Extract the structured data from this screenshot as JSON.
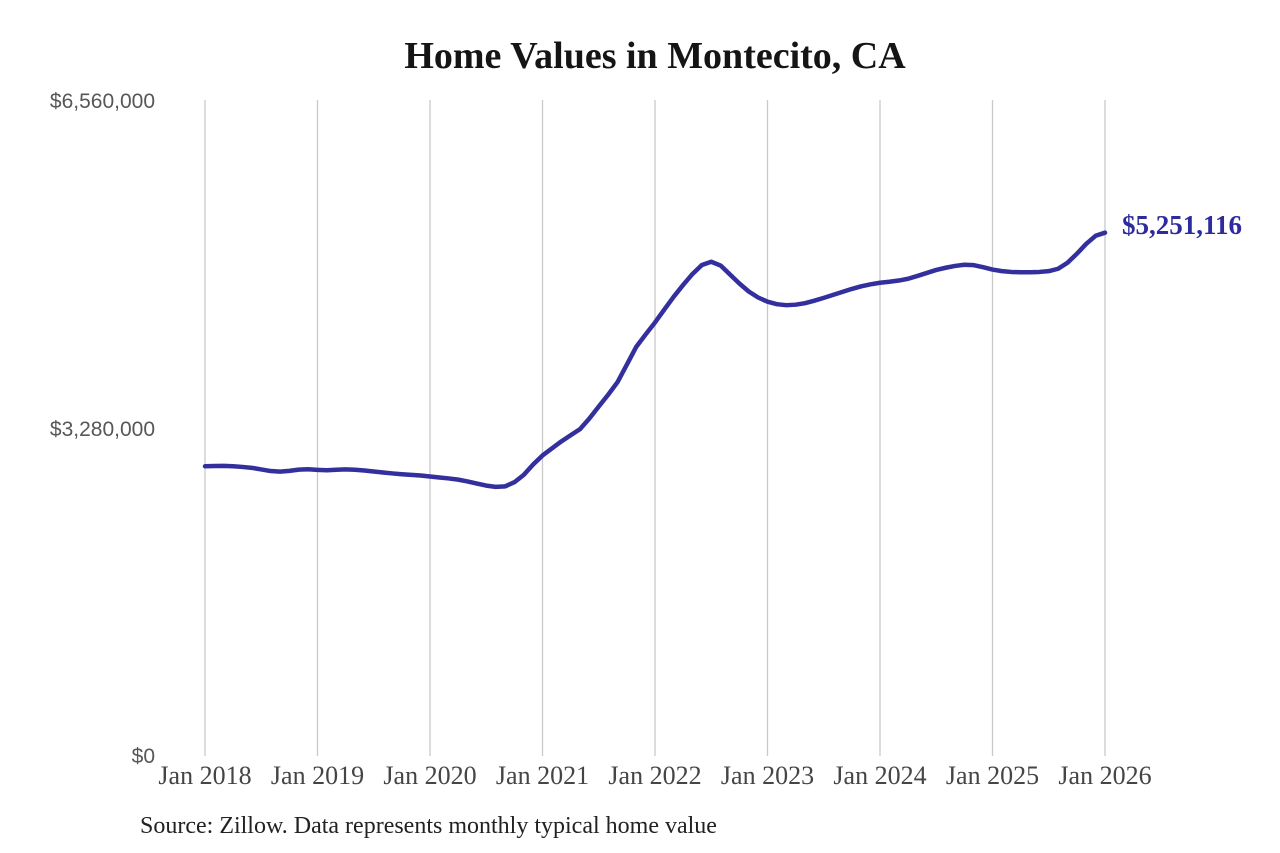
{
  "title": "Home Values in Montecito, CA",
  "end_value_label": "$5,251,116",
  "source_note": "Source: Zillow. Data represents monthly typical home value",
  "colors": {
    "line": "#33309e",
    "end_label": "#2d2b9e",
    "grid": "#c9c9c9",
    "y_tick_label": "#575757",
    "x_tick_label": "#454545",
    "title": "#151515",
    "source": "#222222",
    "background": "#ffffff"
  },
  "chart_data": {
    "type": "line",
    "title": "Home Values in Montecito, CA",
    "xlabel": "",
    "ylabel": "",
    "ylim": [
      0,
      6560000
    ],
    "grid": "vertical-only",
    "legend": "none",
    "frequency": "monthly",
    "start_month": "Jan 2018",
    "end_month": "Jan 2026",
    "x_tick_labels": [
      "Jan 2018",
      "Jan 2019",
      "Jan 2020",
      "Jan 2021",
      "Jan 2022",
      "Jan 2023",
      "Jan 2024",
      "Jan 2025",
      "Jan 2026"
    ],
    "y_ticks": [
      {
        "value": 0,
        "label": "$0"
      },
      {
        "value": 3280000,
        "label": "$3,280,000"
      },
      {
        "value": 6560000,
        "label": "$6,560,000"
      }
    ],
    "series": [
      {
        "name": "Typical home value",
        "last_value": 5251116,
        "last_value_label": "$5,251,116",
        "values": [
          2912000,
          2915000,
          2916000,
          2912000,
          2905000,
          2896000,
          2880000,
          2864000,
          2858000,
          2866000,
          2878000,
          2882000,
          2876000,
          2872000,
          2877000,
          2881000,
          2877000,
          2869000,
          2859000,
          2849000,
          2840000,
          2832000,
          2825000,
          2819000,
          2809000,
          2799000,
          2790000,
          2778000,
          2760000,
          2738000,
          2718000,
          2705000,
          2710000,
          2752000,
          2826000,
          2930000,
          3020000,
          3090000,
          3160000,
          3222000,
          3284000,
          3390000,
          3510000,
          3628000,
          3754000,
          3930000,
          4108000,
          4232000,
          4352000,
          4482000,
          4610000,
          4728000,
          4838000,
          4928000,
          4960000,
          4922000,
          4832000,
          4742000,
          4662000,
          4602000,
          4560000,
          4535000,
          4525000,
          4530000,
          4545000,
          4570000,
          4598000,
          4628000,
          4658000,
          4688000,
          4714000,
          4734000,
          4750000,
          4760000,
          4772000,
          4790000,
          4818000,
          4848000,
          4878000,
          4900000,
          4918000,
          4930000,
          4926000,
          4906000,
          4882000,
          4866000,
          4858000,
          4855000,
          4855000,
          4858000,
          4866000,
          4890000,
          4950000,
          5040000,
          5140000,
          5220000,
          5251116
        ]
      }
    ]
  }
}
